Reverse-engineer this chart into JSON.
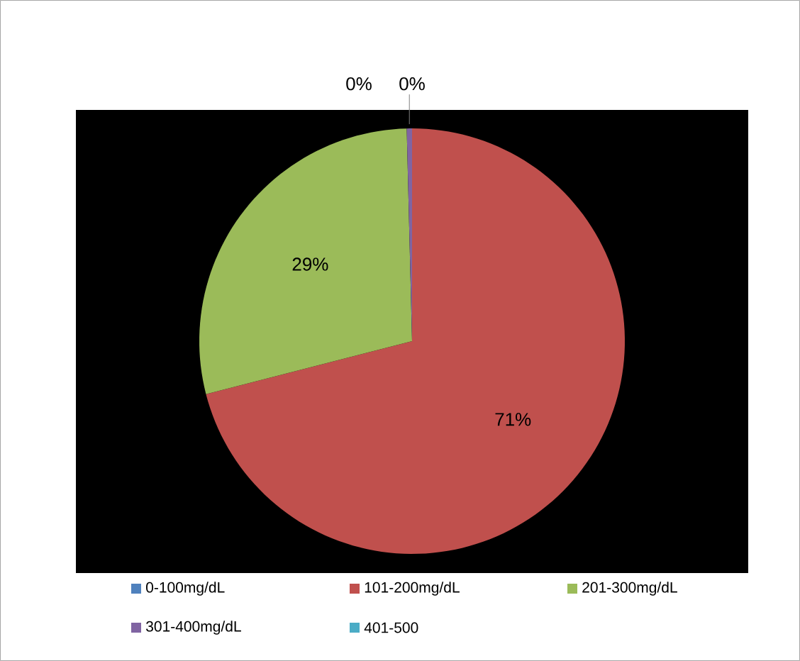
{
  "chart_data": {
    "type": "pie",
    "categories": [
      "0-100mg/dL",
      "101-200mg/dL",
      "201-300mg/dL",
      "301-400mg/dL",
      "401-500"
    ],
    "values": [
      0,
      71,
      28.6,
      0.4,
      0
    ],
    "colors": [
      "#4f81bd",
      "#c0504d",
      "#9bbb59",
      "#8064a2",
      "#4bacc6"
    ],
    "value_labels": [
      null,
      "71%",
      "29%",
      "0%",
      "0%"
    ],
    "legend": "bottom"
  }
}
